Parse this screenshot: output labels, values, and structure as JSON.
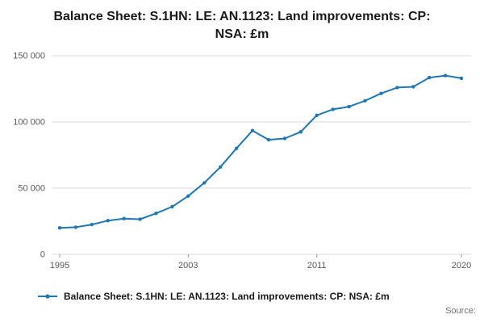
{
  "header": {
    "title": "Balance Sheet: S.1HN: LE: AN.1123: Land improvements: CP: NSA: £m"
  },
  "legend": {
    "label": "Balance Sheet: S.1HN: LE: AN.1123: Land improvements: CP: NSA: £m"
  },
  "footer": {
    "source_label": "Source:"
  },
  "colors": {
    "line": "#1f77b4",
    "grid": "#d9d9d9",
    "tick_mark": "#999999"
  },
  "chart_data": {
    "type": "line",
    "title": "Balance Sheet: S.1HN: LE: AN.1123: Land improvements: CP: NSA: £m",
    "xlabel": "",
    "ylabel": "",
    "x": [
      1995,
      1996,
      1997,
      1998,
      1999,
      2000,
      2001,
      2002,
      2003,
      2004,
      2005,
      2006,
      2007,
      2008,
      2009,
      2010,
      2011,
      2012,
      2013,
      2014,
      2015,
      2016,
      2017,
      2018,
      2019,
      2020
    ],
    "series": [
      {
        "name": "Balance Sheet: S.1HN: LE: AN.1123: Land improvements: CP: NSA: £m",
        "values": [
          20000,
          20500,
          22500,
          25500,
          27000,
          26500,
          31000,
          36000,
          44000,
          54000,
          66000,
          80000,
          93500,
          86500,
          87500,
          92500,
          105000,
          109500,
          111500,
          116000,
          121500,
          126000,
          126500,
          133500,
          135000,
          133000
        ]
      }
    ],
    "xlim": [
      1994.5,
      2020.6
    ],
    "ylim": [
      0,
      150000
    ],
    "xticks": [
      {
        "value": 1995,
        "label": "1995"
      },
      {
        "value": 2003,
        "label": "2003"
      },
      {
        "value": 2011,
        "label": "2011"
      },
      {
        "value": 2020,
        "label": "2020"
      }
    ],
    "yticks": [
      {
        "value": 0,
        "label": "0"
      },
      {
        "value": 50000,
        "label": "50 000"
      },
      {
        "value": 100000,
        "label": "100 000"
      },
      {
        "value": 150000,
        "label": "150 000"
      }
    ],
    "grid": true,
    "legend_position": "bottom",
    "marker": "circle"
  }
}
